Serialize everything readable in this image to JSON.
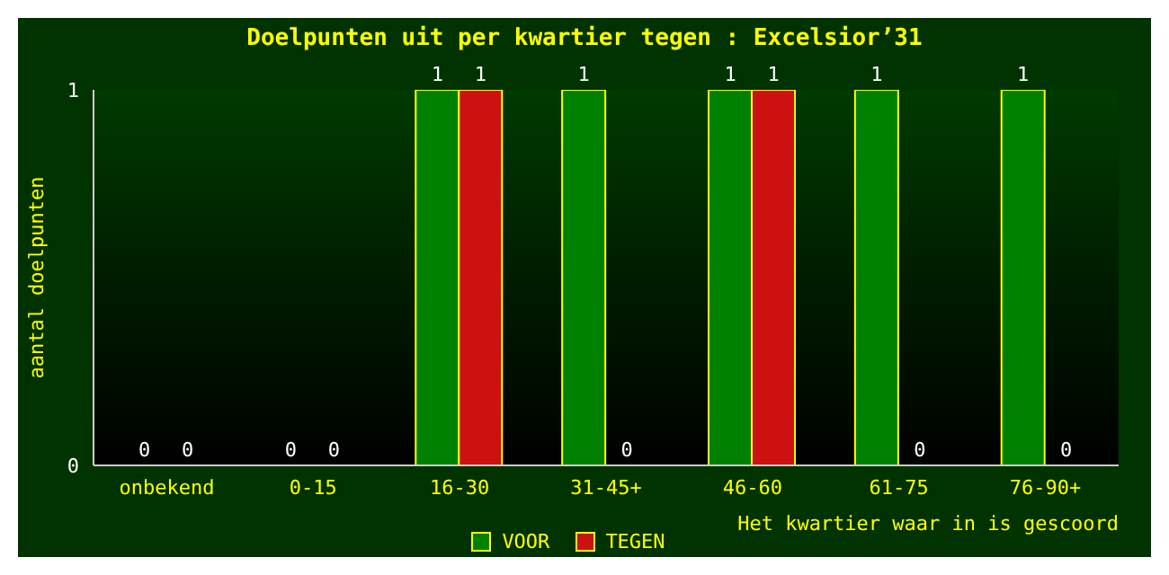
{
  "chart_data": {
    "type": "bar",
    "title": "Doelpunten uit per kwartier tegen : Excelsior’31",
    "categories": [
      "onbekend",
      "0-15",
      "16-30",
      "31-45+",
      "46-60",
      "61-75",
      "76-90+"
    ],
    "series": [
      {
        "name": "VOOR",
        "color": "#008000",
        "values": [
          0,
          0,
          1,
          1,
          1,
          1,
          1
        ]
      },
      {
        "name": "TEGEN",
        "color": "#cc1111",
        "values": [
          0,
          0,
          1,
          0,
          1,
          0,
          0
        ]
      }
    ],
    "ylim": [
      0,
      1
    ],
    "yticks": [
      0,
      1
    ],
    "ylabel": "aantal doelpunten",
    "xlabel": "Het kwartier waar in is gescoord",
    "data_labels": true,
    "legend": "bottom",
    "grid": false
  }
}
